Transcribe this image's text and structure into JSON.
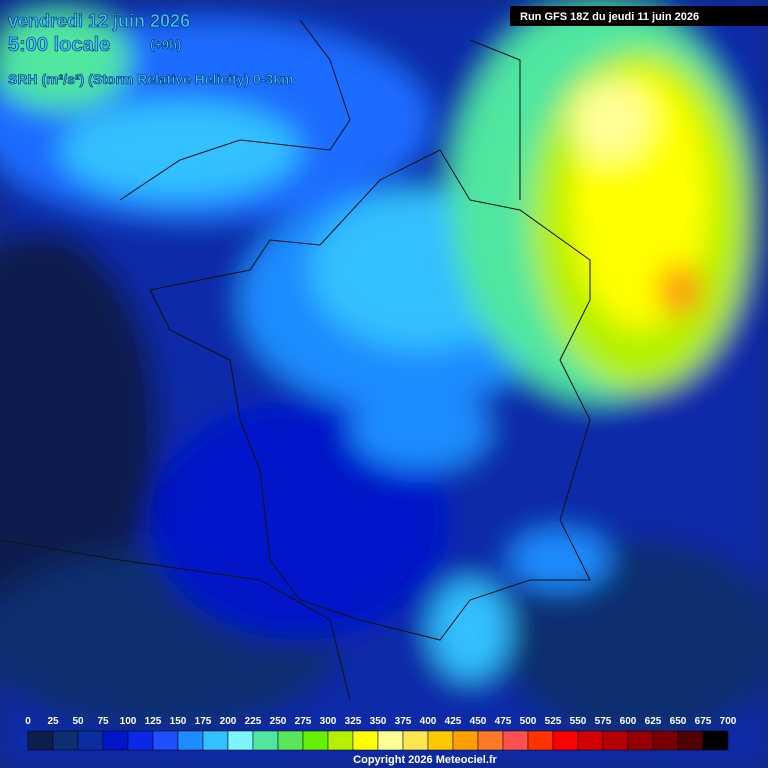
{
  "header": {
    "date": "vendredi 12 juin 2026",
    "time": "5:00 locale",
    "offset": "(+9h)",
    "parameter": "SRH (m²/s²) (Storm Relative Helicity) 0-3km",
    "run": "Run GFS 18Z du jeudi 11 juin 2026"
  },
  "legend": {
    "labels": [
      0,
      25,
      50,
      75,
      100,
      125,
      150,
      175,
      200,
      225,
      250,
      275,
      300,
      325,
      350,
      375,
      400,
      425,
      450,
      475,
      500,
      525,
      550,
      575,
      600,
      625,
      650,
      675,
      700
    ],
    "colors": [
      "#0d1f4d",
      "#0b2f70",
      "#0a2ea0",
      "#0016c8",
      "#0a28e6",
      "#1e50ff",
      "#1e8cff",
      "#32c0ff",
      "#7ef4ff",
      "#50e6a0",
      "#5ae65a",
      "#64f000",
      "#b4f000",
      "#ffff00",
      "#ffff96",
      "#ffe650",
      "#ffc800",
      "#ffa000",
      "#ff7828",
      "#ff5050",
      "#ff3200",
      "#ff0000",
      "#d20000",
      "#b40000",
      "#960000",
      "#780000",
      "#500000",
      "#000000"
    ]
  },
  "footer": {
    "copyright": "Copyright 2026 Meteociel.fr"
  }
}
